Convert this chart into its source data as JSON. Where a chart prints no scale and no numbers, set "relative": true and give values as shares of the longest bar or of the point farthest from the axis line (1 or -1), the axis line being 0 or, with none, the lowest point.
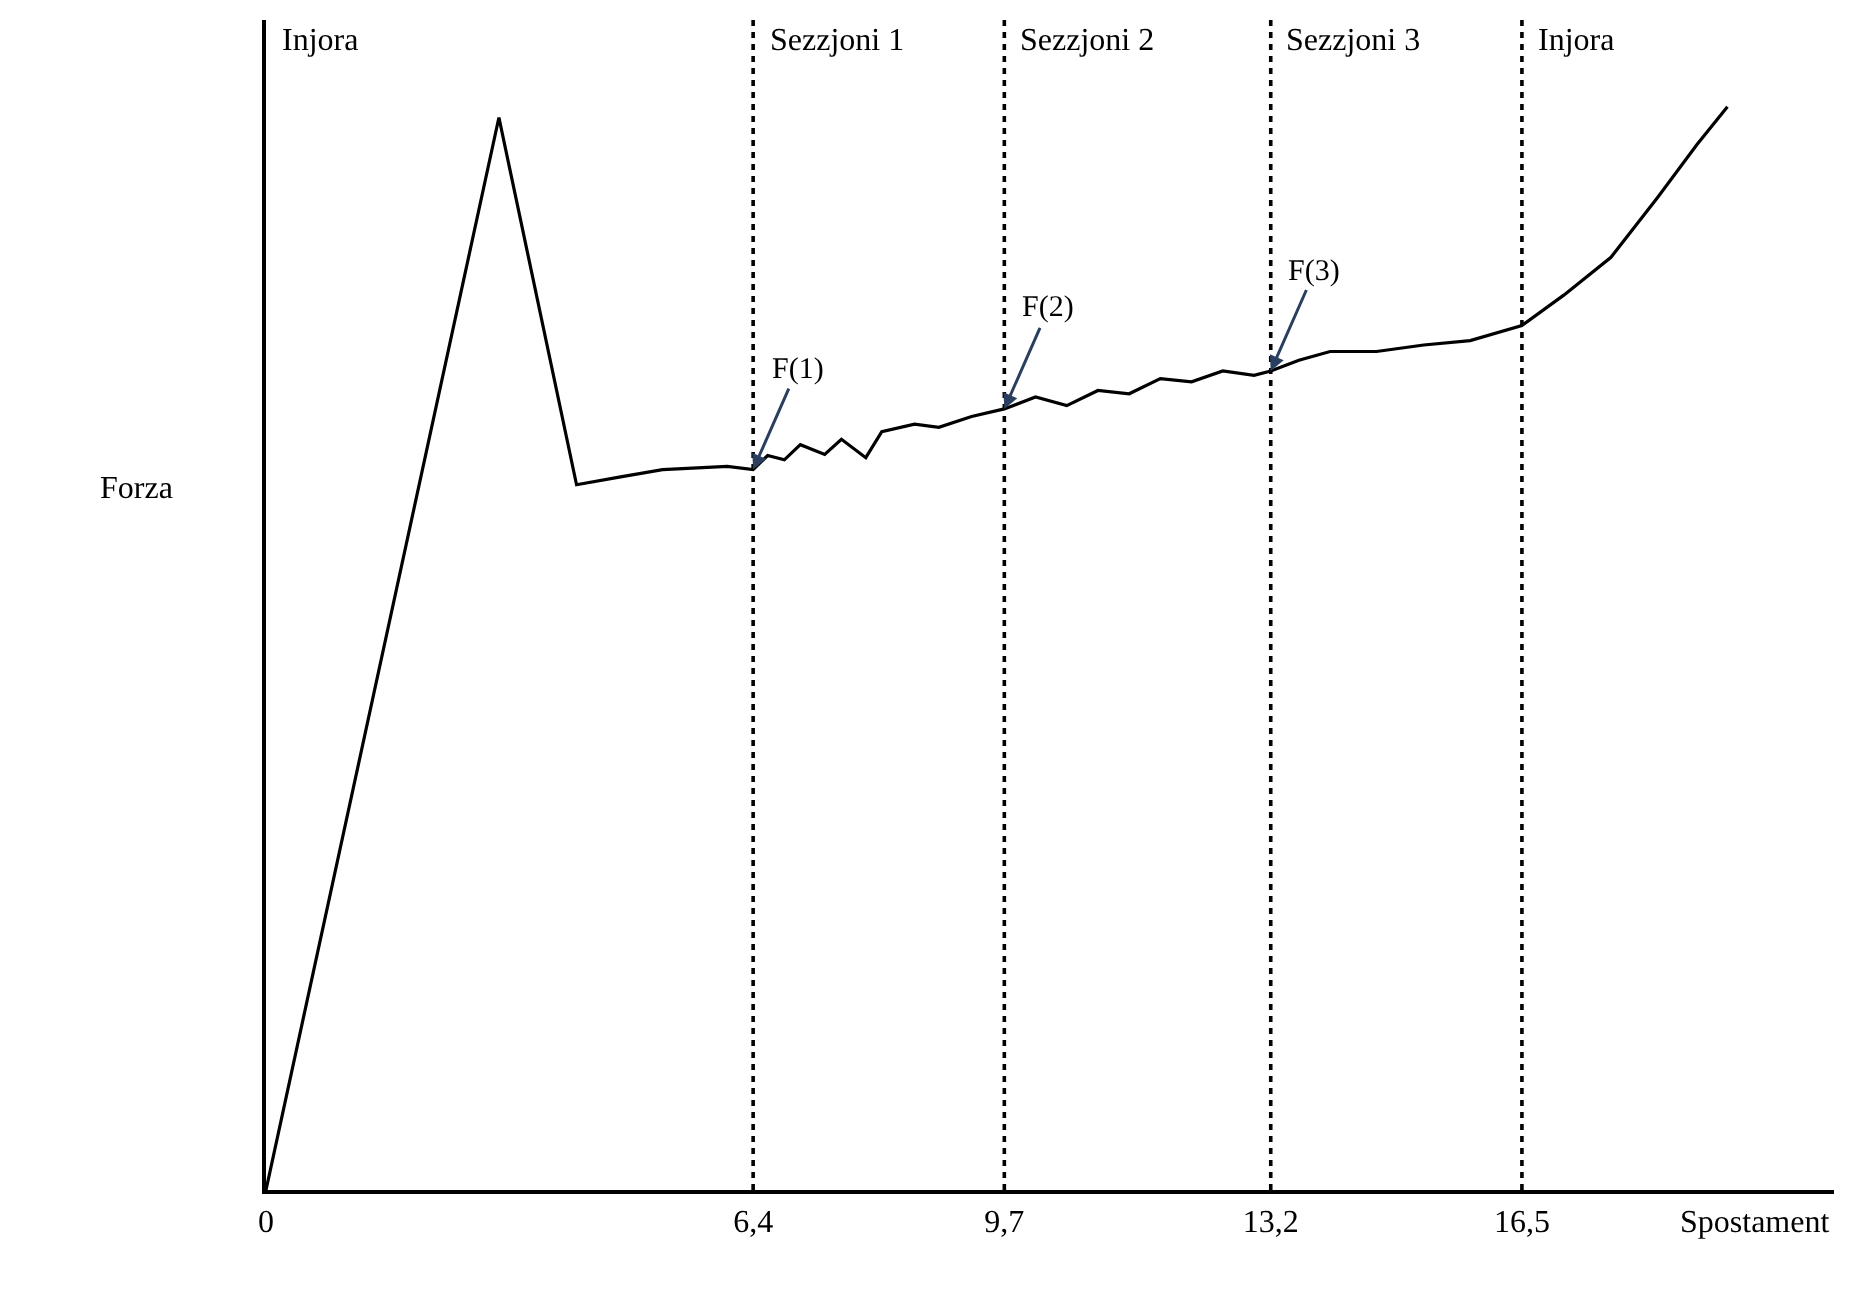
{
  "chart_data": {
    "type": "line",
    "relative": true,
    "xlabel": "Spostament",
    "ylabel": "Forza",
    "x": [
      0,
      3.06,
      4.08,
      4.64,
      5.21,
      6.06,
      6.4,
      6.59,
      6.81,
      7.02,
      7.34,
      7.56,
      7.88,
      8.09,
      8.52,
      8.84,
      9.27,
      9.7,
      10.11,
      10.52,
      10.93,
      11.34,
      11.75,
      12.16,
      12.57,
      12.98,
      13.2,
      13.57,
      13.98,
      14.59,
      15.21,
      15.82,
      16.5,
      17.05,
      17.67,
      18.28,
      18.8,
      19.2
    ],
    "series": [
      {
        "color": "#000000",
        "values": [
          0,
          0.99,
          0.651,
          0.658,
          0.665,
          0.668,
          0.665,
          0.678,
          0.674,
          0.688,
          0.679,
          0.693,
          0.676,
          0.7,
          0.707,
          0.704,
          0.714,
          0.721,
          0.732,
          0.724,
          0.738,
          0.735,
          0.749,
          0.746,
          0.756,
          0.752,
          0.756,
          0.766,
          0.774,
          0.774,
          0.78,
          0.784,
          0.798,
          0.826,
          0.861,
          0.916,
          0.965,
          1.0
        ]
      }
    ],
    "xlim": [
      0,
      20.6
    ],
    "xticks": [
      0,
      {
        "value": 6.4,
        "label": "6,4"
      },
      {
        "value": 9.7,
        "label": "9,7"
      },
      {
        "value": 13.2,
        "label": "13,2"
      },
      {
        "value": 16.5,
        "label": "16,5"
      }
    ],
    "ref_lines": [
      {
        "axis": "x",
        "value": 6.4,
        "line_style": "dotted",
        "color": "#000000",
        "label": "Sezzjoni 1"
      },
      {
        "axis": "x",
        "value": 9.7,
        "line_style": "dotted",
        "color": "#000000",
        "label": "Sezzjoni 2"
      },
      {
        "axis": "x",
        "value": 13.2,
        "line_style": "dotted",
        "color": "#000000",
        "label": "Sezzjoni 3"
      },
      {
        "axis": "x",
        "value": 16.5,
        "line_style": "dotted",
        "color": "#000000",
        "label": "Injora"
      }
    ],
    "annotations": [
      "Injora",
      {
        "text": "F(1)",
        "x": 6.4,
        "y": 0.665
      },
      {
        "text": "F(2)",
        "x": 9.7,
        "y": 0.721
      },
      {
        "text": "F(3)",
        "x": 13.2,
        "y": 0.756
      }
    ],
    "marker": "none",
    "line_style": "solid"
  }
}
